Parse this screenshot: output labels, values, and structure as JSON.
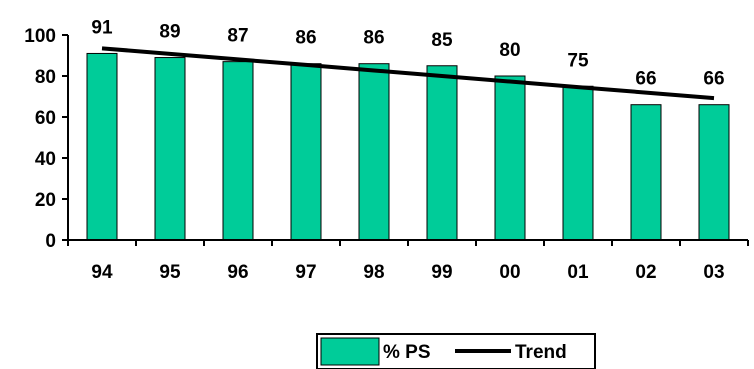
{
  "chart_data": {
    "type": "bar",
    "categories": [
      "94",
      "95",
      "96",
      "97",
      "98",
      "99",
      "00",
      "01",
      "02",
      "03"
    ],
    "series": [
      {
        "name": "% PS",
        "type": "bar",
        "values": [
          91,
          89,
          87,
          86,
          86,
          85,
          80,
          75,
          66,
          66
        ],
        "color": "#00CC99"
      },
      {
        "name": "Trend",
        "type": "line",
        "values": [
          93.5,
          90.8,
          88.1,
          85.4,
          82.7,
          80.0,
          77.3,
          74.6,
          71.9,
          69.2
        ],
        "color": "#000000"
      }
    ],
    "yticks": [
      0,
      20,
      40,
      60,
      80,
      100
    ],
    "ylim": [
      0,
      100
    ],
    "grid": false,
    "data_labels": true,
    "legend_position": "bottom"
  }
}
